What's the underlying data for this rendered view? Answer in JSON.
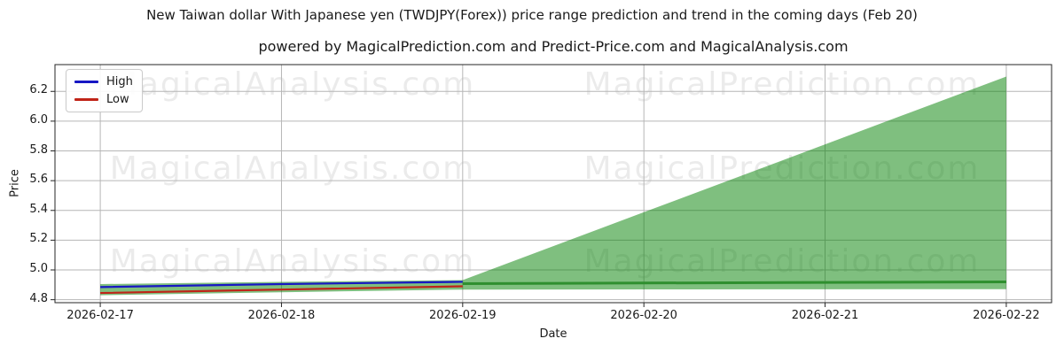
{
  "header": {
    "title": "New Taiwan dollar With Japanese yen (TWDJPY(Forex)) price range prediction and trend in the coming days (Feb 20)",
    "subtitle": "powered by MagicalPrediction.com and Predict-Price.com and MagicalAnalysis.com"
  },
  "watermarks": {
    "left": "MagicalAnalysis.com",
    "right": "MagicalPrediction.com"
  },
  "chart_data": {
    "type": "line",
    "title": "New Taiwan dollar With Japanese yen (TWDJPY(Forex)) price range prediction and trend in the coming days (Feb 20)",
    "subtitle": "powered by MagicalPrediction.com and Predict-Price.com and MagicalAnalysis.com",
    "xlabel": "Date",
    "ylabel": "Price",
    "x_categories": [
      "2026-02-17",
      "2026-02-18",
      "2026-02-19",
      "2026-02-20",
      "2026-02-21",
      "2026-02-22"
    ],
    "yticks": [
      4.8,
      5.0,
      5.2,
      5.4,
      5.6,
      5.8,
      6.0,
      6.2
    ],
    "ylim": [
      4.78,
      6.38
    ],
    "xlim_index": [
      -0.25,
      5.25
    ],
    "grid": true,
    "grid_color": "#b6b6b6",
    "spine_color": "#262626",
    "legend": {
      "position": "upper-left",
      "entries": [
        {
          "label": "High",
          "color": "#1717c4"
        },
        {
          "label": "Low",
          "color": "#c02418"
        }
      ]
    },
    "series": [
      {
        "name": "High",
        "color": "#1717c4",
        "width": 2.2,
        "x": [
          0,
          1,
          2
        ],
        "values": [
          4.885,
          4.905,
          4.92
        ]
      },
      {
        "name": "Low",
        "color": "#c02418",
        "width": 2.2,
        "x": [
          0,
          1,
          2
        ],
        "values": [
          4.845,
          4.868,
          4.89
        ]
      },
      {
        "name": "Forecast trend",
        "color": "#2f8f2f",
        "width": 3,
        "x": [
          2,
          3,
          4,
          5
        ],
        "values": [
          4.908,
          4.912,
          4.916,
          4.92
        ]
      }
    ],
    "bands": [
      {
        "name": "history range",
        "fill": "#008000",
        "opacity": 0.5,
        "x": [
          0,
          1,
          2
        ],
        "top": [
          4.905,
          4.92,
          4.932
        ],
        "bottom": [
          4.83,
          4.85,
          4.868
        ]
      },
      {
        "name": "forecast fan",
        "fill": "#008000",
        "opacity": 0.5,
        "x": [
          2,
          3,
          4,
          5
        ],
        "top": [
          4.932,
          5.388,
          5.844,
          6.3
        ],
        "bottom": [
          4.868,
          4.869,
          4.87,
          4.871
        ]
      }
    ]
  }
}
